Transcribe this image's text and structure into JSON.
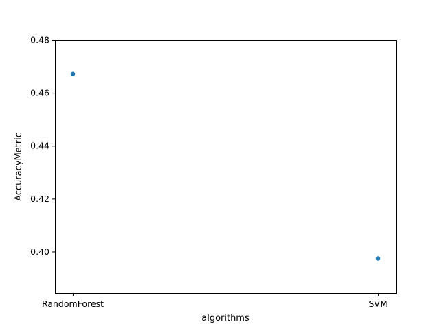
{
  "chart_data": {
    "type": "scatter",
    "title": "",
    "xlabel": "algorithms",
    "ylabel": "AccuracyMetric",
    "categories": [
      "RandomForest",
      "SVM"
    ],
    "series": [
      {
        "values": [
          0.4671,
          0.3974
        ],
        "color": "#1f77b4"
      }
    ],
    "ylim": [
      0.3843,
      0.48
    ],
    "yticks": [
      0.4,
      0.42,
      0.44,
      0.46,
      0.48
    ],
    "ytick_labels": [
      "0.40",
      "0.42",
      "0.44",
      "0.46",
      "0.48"
    ],
    "grid": false,
    "legend": "none"
  }
}
